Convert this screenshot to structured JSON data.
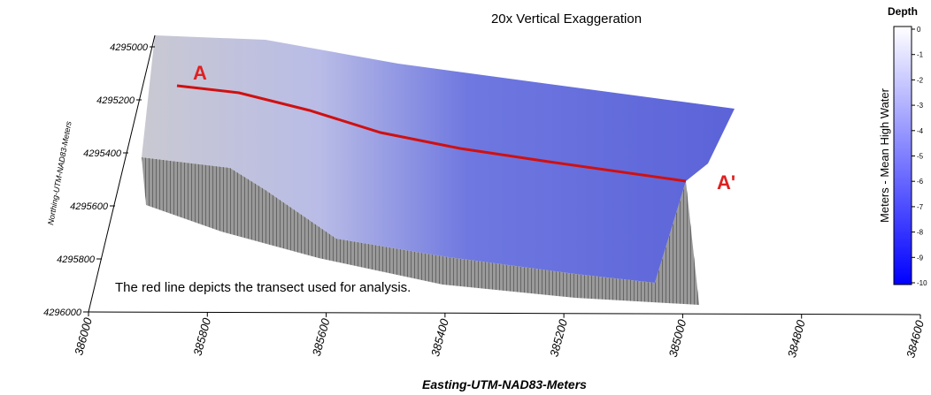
{
  "title": "20x Vertical Exaggeration",
  "annotation": "The red line depicts the transect used for analysis.",
  "transect": {
    "start_label": "A",
    "end_label": "A'"
  },
  "x_axis": {
    "label": "Easting-UTM-NAD83-Meters",
    "ticks": [
      "386000",
      "385800",
      "385600",
      "385400",
      "385200",
      "385000",
      "384800",
      "384600"
    ]
  },
  "y_axis": {
    "label": "Northing-UTM-NAD83-Meters",
    "ticks": [
      "4296000",
      "4295800",
      "4295600",
      "4295400",
      "4295200",
      "4295000"
    ]
  },
  "colorbar": {
    "title": "Depth",
    "label": "Meters - Mean High Water",
    "ticks": [
      0,
      -1,
      -2,
      -3,
      -4,
      -5,
      -6,
      -7,
      -8,
      -9,
      -10
    ]
  }
}
